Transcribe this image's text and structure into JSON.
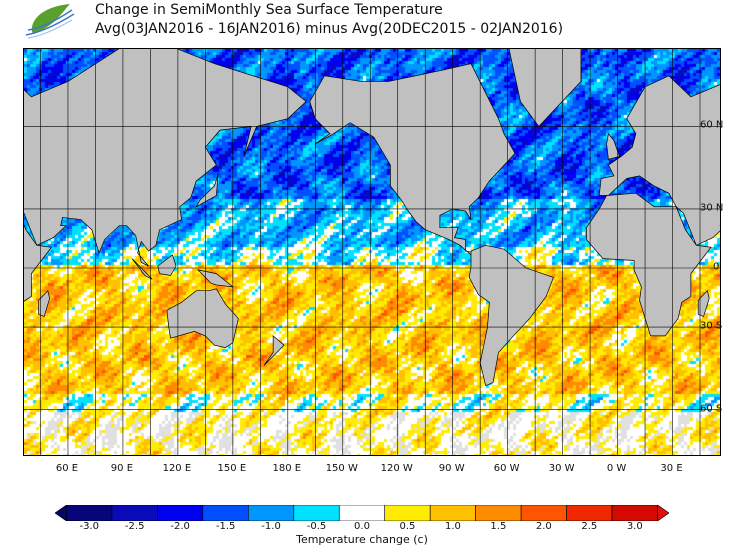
{
  "header": {
    "title": "Change in SemiMonthly Sea Surface Temperature",
    "subtitle": "Avg(03JAN2016 - 16JAN2016) minus Avg(20DEC2015 - 02JAN2016)"
  },
  "map": {
    "projection": "mercator",
    "lon_range": [
      36,
      417
    ],
    "lat_range": [
      -71,
      75.5
    ],
    "lon_labels": [
      {
        "lon": 60,
        "text": "60 E"
      },
      {
        "lon": 90,
        "text": "90 E"
      },
      {
        "lon": 120,
        "text": "120 E"
      },
      {
        "lon": 150,
        "text": "150 E"
      },
      {
        "lon": 180,
        "text": "180 E"
      },
      {
        "lon": 210,
        "text": "150 W"
      },
      {
        "lon": 240,
        "text": "120 W"
      },
      {
        "lon": 270,
        "text": "90 W"
      },
      {
        "lon": 300,
        "text": "60 W"
      },
      {
        "lon": 330,
        "text": "30 W"
      },
      {
        "lon": 360,
        "text": "0 W"
      },
      {
        "lon": 390,
        "text": "30 E"
      }
    ],
    "lat_labels": [
      {
        "lat": 60,
        "text": "60 N"
      },
      {
        "lat": 30,
        "text": "30 N"
      },
      {
        "lat": 0,
        "text": "0"
      },
      {
        "lat": -30,
        "text": "30 S"
      },
      {
        "lat": -60,
        "text": "60 S"
      }
    ],
    "land_color": "#c0c0c0"
  },
  "colorbar": {
    "title": "Temperature change  (c)",
    "labels": [
      "-3.0",
      "-2.5",
      "-2.0",
      "-1.5",
      "-1.0",
      "-0.5",
      "0.0",
      "0.5",
      "1.0",
      "1.5",
      "2.0",
      "2.5",
      "3.0"
    ],
    "colors": [
      "#06067a",
      "#0a0ab8",
      "#0000f0",
      "#0050ff",
      "#0096ff",
      "#00e0ff",
      "#ffffff",
      "#ffec00",
      "#ffc000",
      "#ff8c00",
      "#ff5500",
      "#f02800",
      "#d20a00"
    ],
    "under_color": "#06066a",
    "over_color": "#e01010"
  }
}
